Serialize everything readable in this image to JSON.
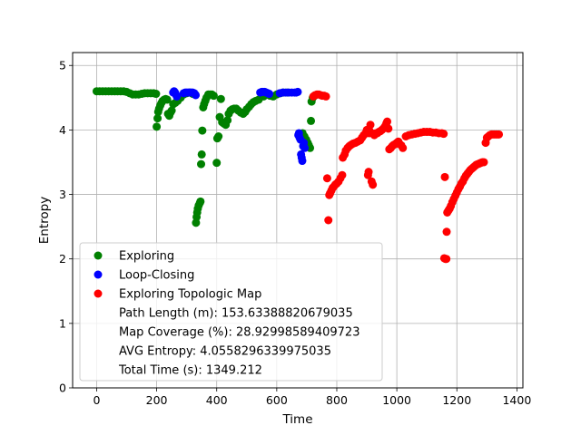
{
  "chart_data": {
    "type": "scatter",
    "xlabel": "Time",
    "ylabel": "Entropy",
    "xlim": [
      -80,
      1420
    ],
    "ylim": [
      0,
      5.2
    ],
    "xticks": [
      0,
      200,
      400,
      600,
      800,
      1000,
      1200,
      1400
    ],
    "yticks": [
      0,
      1,
      2,
      3,
      4,
      5
    ],
    "grid": true,
    "legend_position": "lower-left",
    "series": [
      {
        "name": "Exploring",
        "color": "#008000",
        "points": [
          [
            0,
            4.6
          ],
          [
            10,
            4.6
          ],
          [
            20,
            4.6
          ],
          [
            30,
            4.6
          ],
          [
            40,
            4.6
          ],
          [
            50,
            4.6
          ],
          [
            60,
            4.6
          ],
          [
            70,
            4.6
          ],
          [
            80,
            4.6
          ],
          [
            90,
            4.6
          ],
          [
            100,
            4.59
          ],
          [
            110,
            4.57
          ],
          [
            120,
            4.55
          ],
          [
            130,
            4.55
          ],
          [
            140,
            4.55
          ],
          [
            150,
            4.56
          ],
          [
            160,
            4.57
          ],
          [
            170,
            4.57
          ],
          [
            180,
            4.57
          ],
          [
            190,
            4.57
          ],
          [
            198,
            4.56
          ],
          [
            200,
            4.05
          ],
          [
            203,
            4.18
          ],
          [
            205,
            4.28
          ],
          [
            208,
            4.33
          ],
          [
            212,
            4.38
          ],
          [
            216,
            4.42
          ],
          [
            220,
            4.45
          ],
          [
            225,
            4.47
          ],
          [
            230,
            4.48
          ],
          [
            235,
            4.47
          ],
          [
            238,
            4.25
          ],
          [
            242,
            4.22
          ],
          [
            246,
            4.27
          ],
          [
            250,
            4.3
          ],
          [
            255,
            4.4
          ],
          [
            262,
            4.42
          ],
          [
            270,
            4.45
          ],
          [
            280,
            4.5
          ],
          [
            290,
            4.55
          ],
          [
            300,
            4.57
          ],
          [
            310,
            4.58
          ],
          [
            320,
            4.56
          ],
          [
            328,
            4.55
          ],
          [
            331,
            2.56
          ],
          [
            333,
            2.65
          ],
          [
            335,
            2.72
          ],
          [
            337,
            2.78
          ],
          [
            340,
            2.83
          ],
          [
            344,
            2.87
          ],
          [
            346,
            2.89
          ],
          [
            348,
            3.47
          ],
          [
            350,
            3.62
          ],
          [
            352,
            3.99
          ],
          [
            355,
            4.35
          ],
          [
            358,
            4.4
          ],
          [
            362,
            4.45
          ],
          [
            366,
            4.5
          ],
          [
            372,
            4.55
          ],
          [
            378,
            4.55
          ],
          [
            384,
            4.55
          ],
          [
            390,
            4.53
          ],
          [
            400,
            3.49
          ],
          [
            402,
            3.87
          ],
          [
            406,
            3.9
          ],
          [
            410,
            4.2
          ],
          [
            414,
            4.48
          ],
          [
            418,
            4.12
          ],
          [
            424,
            4.1
          ],
          [
            430,
            4.08
          ],
          [
            436,
            4.15
          ],
          [
            440,
            4.25
          ],
          [
            446,
            4.3
          ],
          [
            452,
            4.32
          ],
          [
            458,
            4.33
          ],
          [
            465,
            4.33
          ],
          [
            472,
            4.3
          ],
          [
            480,
            4.27
          ],
          [
            488,
            4.25
          ],
          [
            495,
            4.28
          ],
          [
            500,
            4.32
          ],
          [
            508,
            4.36
          ],
          [
            515,
            4.4
          ],
          [
            522,
            4.43
          ],
          [
            530,
            4.45
          ],
          [
            540,
            4.47
          ],
          [
            556,
            4.52
          ],
          [
            568,
            4.55
          ],
          [
            578,
            4.53
          ],
          [
            588,
            4.52
          ],
          [
            600,
            4.55
          ],
          [
            612,
            4.57
          ],
          [
            622,
            4.58
          ],
          [
            636,
            4.58
          ],
          [
            686,
            3.95
          ],
          [
            692,
            3.9
          ],
          [
            698,
            3.85
          ],
          [
            703,
            3.8
          ],
          [
            707,
            3.76
          ],
          [
            711,
            3.72
          ],
          [
            714,
            4.14
          ],
          [
            716,
            4.44
          ],
          [
            720,
            4.5
          ],
          [
            726,
            4.53
          ]
        ]
      },
      {
        "name": "Loop-Closing",
        "color": "#0000ff",
        "points": [
          [
            255,
            4.58
          ],
          [
            258,
            4.6
          ],
          [
            261,
            4.58
          ],
          [
            264,
            4.55
          ],
          [
            267,
            4.52
          ],
          [
            290,
            4.57
          ],
          [
            295,
            4.58
          ],
          [
            300,
            4.58
          ],
          [
            305,
            4.58
          ],
          [
            310,
            4.58
          ],
          [
            315,
            4.58
          ],
          [
            320,
            4.58
          ],
          [
            325,
            4.57
          ],
          [
            330,
            4.54
          ],
          [
            545,
            4.58
          ],
          [
            550,
            4.59
          ],
          [
            555,
            4.59
          ],
          [
            560,
            4.59
          ],
          [
            565,
            4.58
          ],
          [
            570,
            4.57
          ],
          [
            575,
            4.56
          ],
          [
            610,
            4.57
          ],
          [
            620,
            4.58
          ],
          [
            630,
            4.58
          ],
          [
            640,
            4.58
          ],
          [
            650,
            4.58
          ],
          [
            660,
            4.58
          ],
          [
            665,
            4.58
          ],
          [
            670,
            4.59
          ],
          [
            672,
            3.92
          ],
          [
            674,
            3.95
          ],
          [
            676,
            3.88
          ],
          [
            679,
            3.85
          ],
          [
            681,
            3.62
          ],
          [
            683,
            3.57
          ],
          [
            685,
            3.52
          ],
          [
            688,
            3.75
          ],
          [
            690,
            3.8
          ],
          [
            693,
            3.72
          ]
        ]
      },
      {
        "name": "Exploring Topologic Map",
        "color": "#ff0000",
        "points": [
          [
            722,
            4.52
          ],
          [
            728,
            4.54
          ],
          [
            734,
            4.55
          ],
          [
            740,
            4.55
          ],
          [
            746,
            4.54
          ],
          [
            752,
            4.53
          ],
          [
            758,
            4.53
          ],
          [
            764,
            4.52
          ],
          [
            768,
            3.25
          ],
          [
            772,
            2.6
          ],
          [
            775,
            2.99
          ],
          [
            778,
            3.02
          ],
          [
            782,
            3.06
          ],
          [
            786,
            3.1
          ],
          [
            790,
            3.12
          ],
          [
            795,
            3.15
          ],
          [
            800,
            3.17
          ],
          [
            806,
            3.2
          ],
          [
            812,
            3.25
          ],
          [
            818,
            3.3
          ],
          [
            820,
            3.57
          ],
          [
            826,
            3.62
          ],
          [
            830,
            3.68
          ],
          [
            836,
            3.72
          ],
          [
            842,
            3.75
          ],
          [
            848,
            3.77
          ],
          [
            855,
            3.79
          ],
          [
            862,
            3.8
          ],
          [
            870,
            3.82
          ],
          [
            878,
            3.84
          ],
          [
            884,
            3.88
          ],
          [
            890,
            3.92
          ],
          [
            896,
            3.95
          ],
          [
            900,
            4.0
          ],
          [
            904,
            3.3
          ],
          [
            906,
            3.35
          ],
          [
            908,
            3.95
          ],
          [
            910,
            3.98
          ],
          [
            912,
            4.08
          ],
          [
            916,
            3.2
          ],
          [
            920,
            3.15
          ],
          [
            925,
            3.92
          ],
          [
            930,
            3.95
          ],
          [
            935,
            3.95
          ],
          [
            940,
            3.97
          ],
          [
            945,
            3.98
          ],
          [
            950,
            4.0
          ],
          [
            955,
            4.02
          ],
          [
            960,
            4.05
          ],
          [
            965,
            4.1
          ],
          [
            968,
            4.13
          ],
          [
            972,
            4.02
          ],
          [
            975,
            3.7
          ],
          [
            980,
            3.72
          ],
          [
            985,
            3.75
          ],
          [
            990,
            3.77
          ],
          [
            995,
            3.78
          ],
          [
            1000,
            3.8
          ],
          [
            1005,
            3.82
          ],
          [
            1010,
            3.78
          ],
          [
            1015,
            3.76
          ],
          [
            1020,
            3.72
          ],
          [
            1030,
            3.9
          ],
          [
            1040,
            3.92
          ],
          [
            1050,
            3.93
          ],
          [
            1060,
            3.94
          ],
          [
            1070,
            3.95
          ],
          [
            1080,
            3.96
          ],
          [
            1090,
            3.97
          ],
          [
            1100,
            3.97
          ],
          [
            1110,
            3.97
          ],
          [
            1120,
            3.96
          ],
          [
            1130,
            3.96
          ],
          [
            1140,
            3.95
          ],
          [
            1150,
            3.95
          ],
          [
            1156,
            3.94
          ],
          [
            1158,
            2.01
          ],
          [
            1162,
            2.0
          ],
          [
            1165,
            2.0
          ],
          [
            1160,
            3.27
          ],
          [
            1166,
            2.42
          ],
          [
            1168,
            2.72
          ],
          [
            1172,
            2.75
          ],
          [
            1176,
            2.78
          ],
          [
            1180,
            2.82
          ],
          [
            1185,
            2.88
          ],
          [
            1190,
            2.93
          ],
          [
            1195,
            2.98
          ],
          [
            1200,
            3.03
          ],
          [
            1205,
            3.08
          ],
          [
            1210,
            3.12
          ],
          [
            1215,
            3.17
          ],
          [
            1220,
            3.2
          ],
          [
            1225,
            3.25
          ],
          [
            1230,
            3.29
          ],
          [
            1235,
            3.32
          ],
          [
            1240,
            3.35
          ],
          [
            1245,
            3.38
          ],
          [
            1250,
            3.4
          ],
          [
            1255,
            3.42
          ],
          [
            1260,
            3.44
          ],
          [
            1265,
            3.46
          ],
          [
            1270,
            3.47
          ],
          [
            1275,
            3.48
          ],
          [
            1280,
            3.49
          ],
          [
            1285,
            3.5
          ],
          [
            1290,
            3.5
          ],
          [
            1296,
            3.8
          ],
          [
            1300,
            3.88
          ],
          [
            1305,
            3.9
          ],
          [
            1310,
            3.92
          ],
          [
            1315,
            3.93
          ],
          [
            1320,
            3.93
          ],
          [
            1325,
            3.93
          ],
          [
            1330,
            3.93
          ],
          [
            1335,
            3.93
          ],
          [
            1340,
            3.93
          ]
        ]
      }
    ],
    "legend_info": [
      "Path Length (m): 153.63388820679035",
      "Map Coverage (%): 28.92998589409723",
      "AVG Entropy: 4.0558296339975035",
      "Total Time (s): 1349.212"
    ]
  }
}
